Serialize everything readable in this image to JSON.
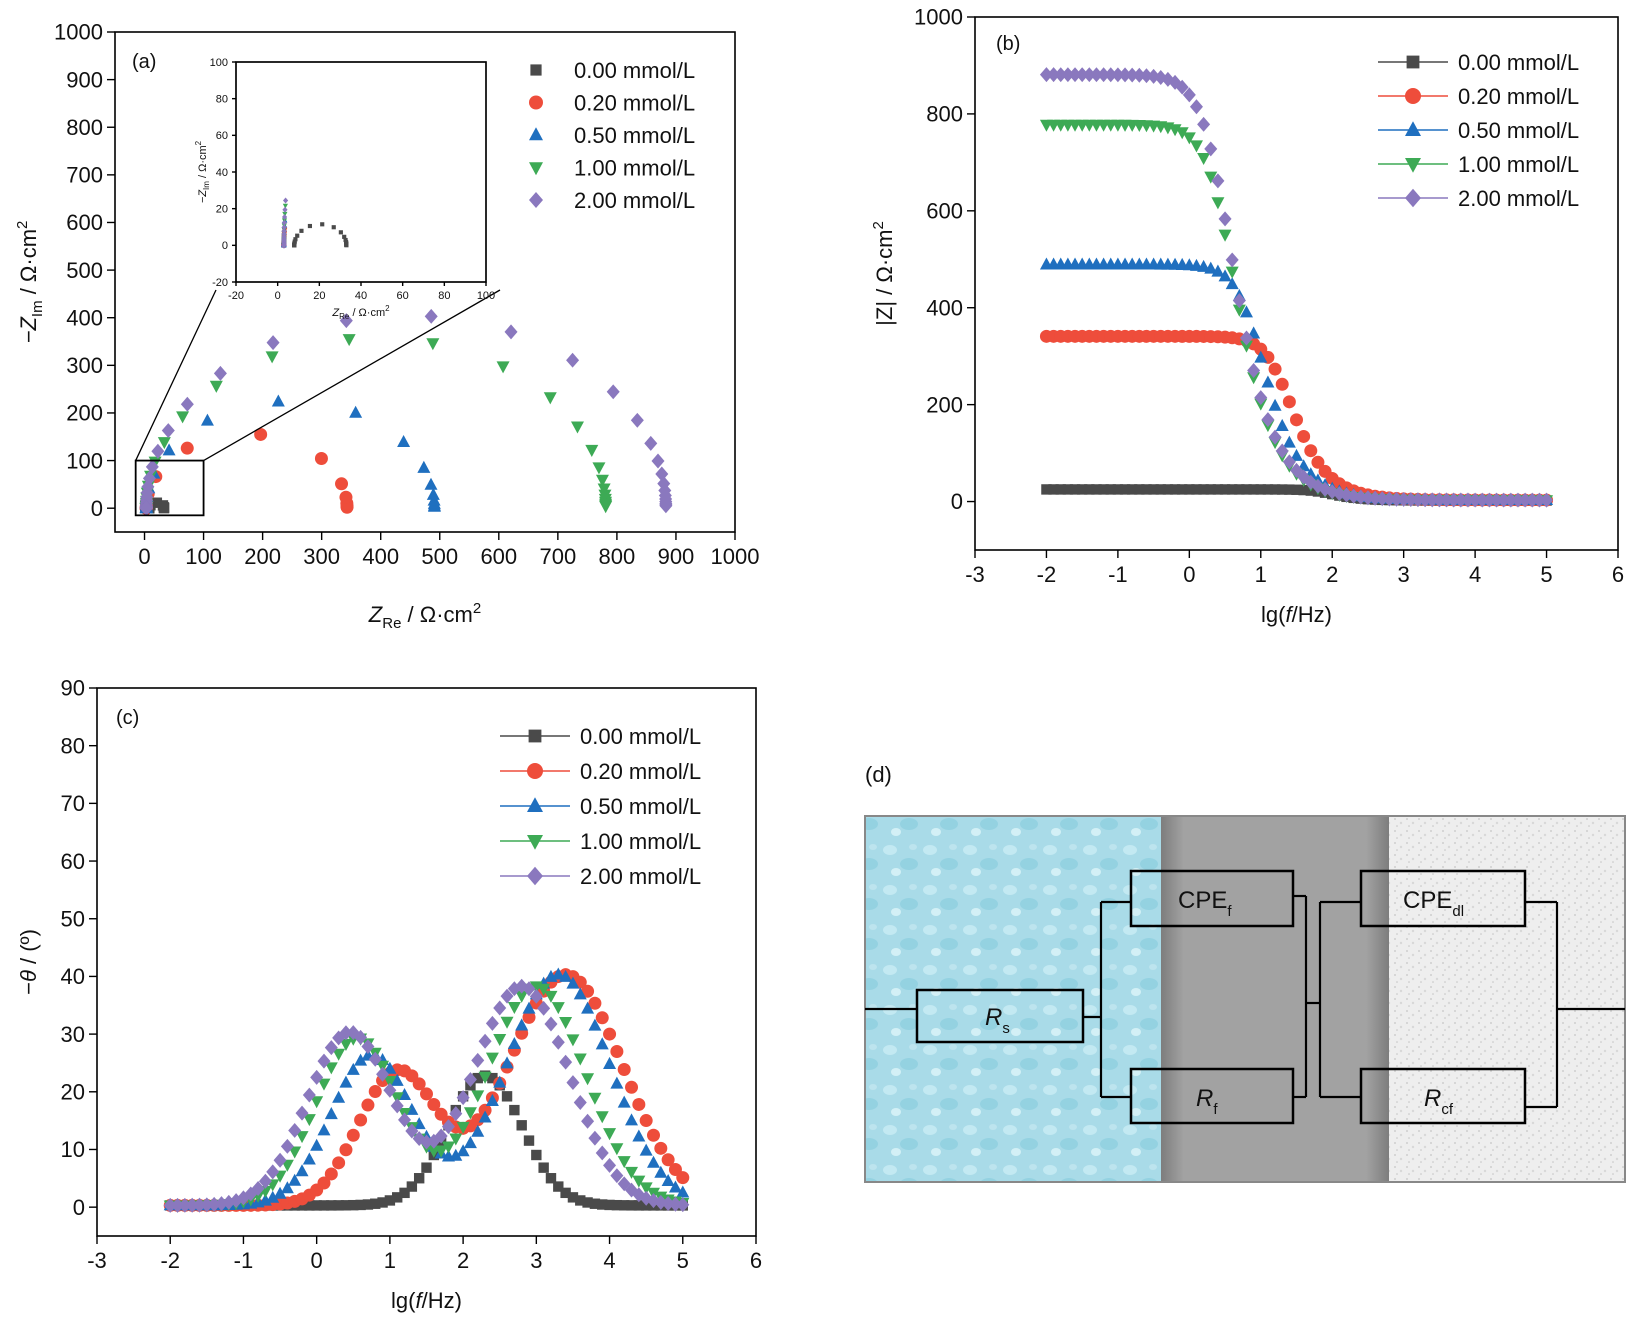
{
  "colors": {
    "c000": "#4a4a4a",
    "c020": "#ee4d3b",
    "c050": "#1f6fbf",
    "c100": "#3daa55",
    "c200": "#8a78be"
  },
  "series_labels": [
    "0.00 mmol/L",
    "0.20 mmol/L",
    "0.50 mmol/L",
    "1.00 mmol/L",
    "2.00 mmol/L"
  ],
  "chart_data": [
    {
      "id": "a",
      "panel_label": "(a)",
      "type": "scatter",
      "xlim": [
        -50,
        1000
      ],
      "ylim": [
        -50,
        1000
      ],
      "xticks": [
        0,
        100,
        200,
        300,
        400,
        500,
        600,
        700,
        800,
        900,
        1000
      ],
      "yticks": [
        0,
        100,
        200,
        300,
        400,
        500,
        600,
        700,
        800,
        900,
        1000
      ],
      "xlabel_main": "Z",
      "xlabel_sub": "Re",
      "xlabel_tail": " / Ω·cm",
      "ylabel_main": "−Z",
      "ylabel_sub": "Im",
      "ylabel_tail": " / Ω·cm",
      "unit_sup": "2",
      "legend_position": "top-right",
      "series_arcs": [
        {
          "rs": 8,
          "r": 25,
          "kmax": 0.35
        },
        {
          "rs": 3,
          "r": 340,
          "kmax": 0.6
        },
        {
          "rs": 3,
          "r": 488,
          "kmax": 0.58
        },
        {
          "rs": 3,
          "r": 778,
          "kmax": 0.58
        },
        {
          "rs": 3,
          "r": 880,
          "kmax": 0.58
        }
      ],
      "inset": {
        "xlim": [
          -20,
          100
        ],
        "ylim": [
          -20,
          100
        ],
        "xticks": [
          -20,
          0,
          20,
          40,
          60,
          80,
          100
        ],
        "yticks": [
          -20,
          0,
          20,
          40,
          60,
          80,
          100
        ],
        "xlabel_main": "Z",
        "xlabel_sub": "Re",
        "ylabel_main": "−Z",
        "ylabel_sub": "Im",
        "label_tail": " / Ω·cm",
        "unit_sup": "2",
        "zoom_box": {
          "x": [
            -15,
            100
          ],
          "y": [
            -15,
            100
          ]
        }
      }
    },
    {
      "id": "b",
      "panel_label": "(b)",
      "type": "scatter",
      "xlim": [
        -3,
        6
      ],
      "ylim": [
        -100,
        1000
      ],
      "xticks": [
        -3,
        -2,
        -1,
        0,
        1,
        2,
        3,
        4,
        5,
        6
      ],
      "yticks": [
        0,
        200,
        400,
        600,
        800,
        1000
      ],
      "xlabel_main": "lg(",
      "xlabel_italic": "f",
      "xlabel_tail": "/Hz)",
      "ylabel_main": "|Z| / Ω·cm",
      "unit_sup": "2",
      "legend_position": "top-right",
      "series_bode": [
        {
          "rs": 2,
          "r": 23,
          "lfc": 1.9,
          "slope": 1.5
        },
        {
          "rs": 3,
          "r": 338,
          "lfc": 1.3,
          "slope": 1.25
        },
        {
          "rs": 3,
          "r": 486,
          "lfc": 0.9,
          "slope": 1.2
        },
        {
          "rs": 3,
          "r": 775,
          "lfc": 0.5,
          "slope": 1.15
        },
        {
          "rs": 3,
          "r": 878,
          "lfc": 0.45,
          "slope": 1.1
        }
      ]
    },
    {
      "id": "c",
      "panel_label": "(c)",
      "type": "scatter",
      "xlim": [
        -3,
        6
      ],
      "ylim": [
        -5,
        90
      ],
      "xticks": [
        -3,
        -2,
        -1,
        0,
        1,
        2,
        3,
        4,
        5,
        6
      ],
      "yticks": [
        0,
        10,
        20,
        30,
        40,
        50,
        60,
        70,
        80,
        90
      ],
      "xlabel_main": "lg(",
      "xlabel_italic": "f",
      "xlabel_tail": "/Hz)",
      "ylabel_main": "−",
      "ylabel_italic": "θ",
      "ylabel_tail": " / (º)",
      "legend_position": "top-right",
      "series_phase": [
        {
          "peaks": [
            {
              "a": 22.5,
              "c": 2.3,
              "w": 0.72
            }
          ]
        },
        {
          "peaks": [
            {
              "a": 23,
              "c": 1.1,
              "w": 0.75
            },
            {
              "a": 40,
              "c": 3.4,
              "w": 1.1
            }
          ]
        },
        {
          "peaks": [
            {
              "a": 26,
              "c": 0.75,
              "w": 0.78
            },
            {
              "a": 40,
              "c": 3.3,
              "w": 1.0
            }
          ]
        },
        {
          "peaks": [
            {
              "a": 29,
              "c": 0.55,
              "w": 0.8
            },
            {
              "a": 38,
              "c": 3.0,
              "w": 0.95
            }
          ]
        },
        {
          "peaks": [
            {
              "a": 30,
              "c": 0.45,
              "w": 0.82
            },
            {
              "a": 38,
              "c": 2.8,
              "w": 0.92
            }
          ]
        }
      ]
    }
  ],
  "circuit": {
    "panel_label": "(d)",
    "rs_main": "R",
    "rs_sub": "s",
    "cpef_main": "CPE",
    "cpef_sub": "f",
    "rf_main": "R",
    "rf_sub": "f",
    "cpedl_main": "CPE",
    "cpedl_sub": "dl",
    "rcf_main": "R",
    "rcf_sub": "cf"
  }
}
